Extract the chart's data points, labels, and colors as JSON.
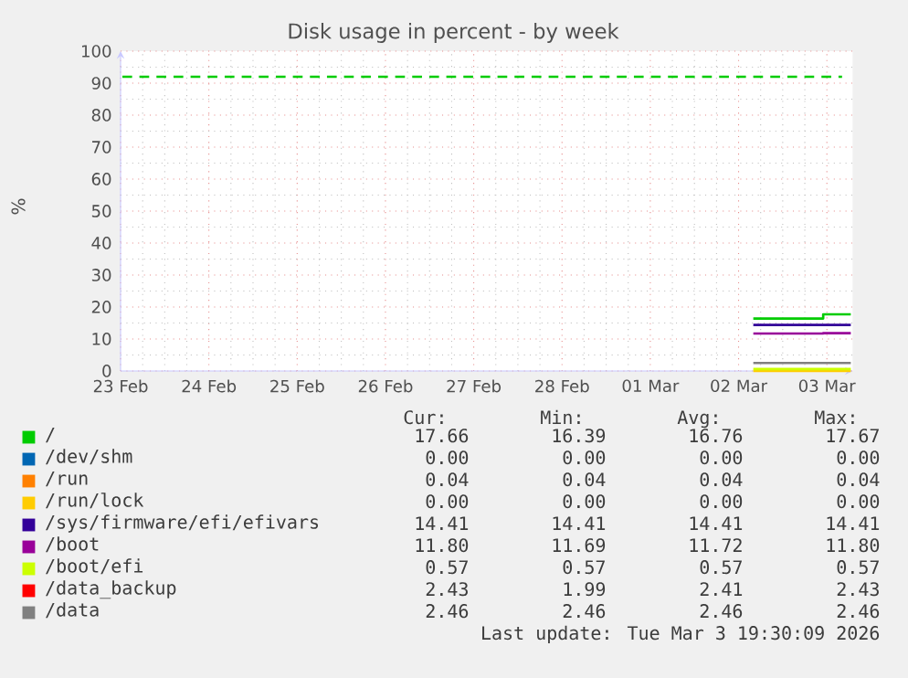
{
  "chart_data": {
    "type": "step",
    "title": "Disk usage in percent - by week",
    "ylabel": "%",
    "xlim": [
      "2026-02-23",
      "2026-03-03T07:00"
    ],
    "xticks": [
      {
        "value": "2026-02-23",
        "label": "23 Feb"
      },
      {
        "value": "2026-02-24",
        "label": "24 Feb"
      },
      {
        "value": "2026-02-25",
        "label": "25 Feb"
      },
      {
        "value": "2026-02-26",
        "label": "26 Feb"
      },
      {
        "value": "2026-02-27",
        "label": "27 Feb"
      },
      {
        "value": "2026-02-28",
        "label": "28 Feb"
      },
      {
        "value": "2026-03-01",
        "label": "01 Mar"
      },
      {
        "value": "2026-03-02",
        "label": "02 Mar"
      },
      {
        "value": "2026-03-03",
        "label": "03 Mar"
      }
    ],
    "ylim": [
      0,
      100
    ],
    "yticks": [
      0,
      10,
      20,
      30,
      40,
      50,
      60,
      70,
      80,
      90,
      100
    ],
    "grid": true,
    "legend": "bottom",
    "series": [
      {
        "name": "/",
        "color": "#00cc00",
        "x": [
          "2026-03-02T04:00",
          "2026-03-02T23:00",
          "2026-03-03T06:30"
        ],
        "values": [
          16.4,
          17.7,
          17.7
        ]
      },
      {
        "name": "/dev/shm",
        "color": "#0066b3"
      },
      {
        "name": "/run",
        "color": "#ff8000"
      },
      {
        "name": "/run/lock",
        "color": "#ffcc00",
        "x": [
          "2026-03-02T04:00",
          "2026-03-02T23:00",
          "2026-03-03T06:30"
        ],
        "values": [
          0,
          0,
          0
        ]
      },
      {
        "name": "/sys/firmware/efi/efivars",
        "color": "#330099",
        "x": [
          "2026-03-02T04:00",
          "2026-03-02T23:00",
          "2026-03-03T06:30"
        ],
        "values": [
          14.4,
          14.4,
          14.4
        ]
      },
      {
        "name": "/boot",
        "color": "#990099",
        "x": [
          "2026-03-02T04:00",
          "2026-03-02T23:00",
          "2026-03-03T06:30"
        ],
        "values": [
          11.7,
          11.8,
          11.8
        ]
      },
      {
        "name": "/boot/efi",
        "color": "#ccff00",
        "x": [
          "2026-03-02T04:00",
          "2026-03-02T23:00",
          "2026-03-03T06:30"
        ],
        "values": [
          0.6,
          0.6,
          0.6
        ]
      },
      {
        "name": "/data_backup",
        "color": "#ff0000"
      },
      {
        "name": "/data",
        "color": "#808080",
        "x": [
          "2026-03-02T04:00",
          "2026-03-02T23:00",
          "2026-03-03T06:30"
        ],
        "values": [
          2.5,
          2.5,
          2.5
        ]
      }
    ],
    "ref_lines": [
      {
        "axis": "y",
        "value": 92,
        "color": "#00cc00",
        "line_style": "dashed"
      }
    ],
    "annotations": [
      "Cur:",
      "Min:",
      "Avg:",
      "Max:",
      "17.66",
      "16.39",
      "16.76",
      "17.67",
      "0.00",
      "0.00",
      "0.00",
      "0.00",
      "0.04",
      "0.04",
      "0.04",
      "0.04",
      "0.00",
      "0.00",
      "0.00",
      "0.00",
      "14.41",
      "14.41",
      "14.41",
      "14.41",
      "11.80",
      "11.69",
      "11.72",
      "11.80",
      "0.57",
      "0.57",
      "0.57",
      "0.57",
      "2.43",
      "1.99",
      "2.41",
      "2.43",
      "2.46",
      "2.46",
      "2.46",
      "2.46",
      "Last update: Tue Mar 3 19:30:09 2026"
    ]
  }
}
